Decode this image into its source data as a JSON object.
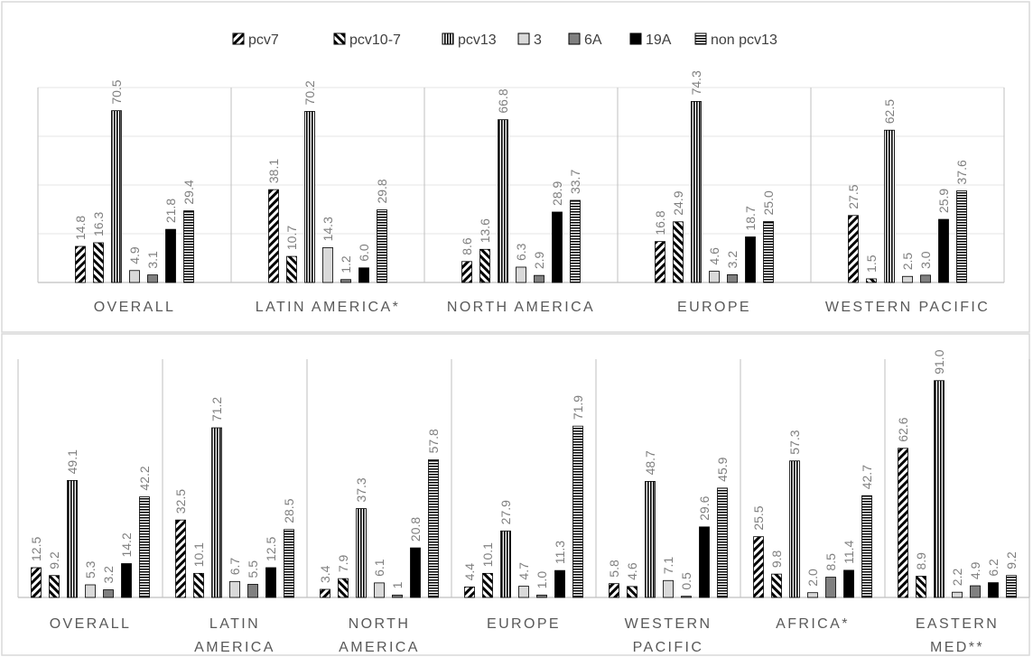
{
  "chart_data": [
    {
      "type": "bar",
      "legend": "top",
      "series_names": [
        "pcv7",
        "pcv10-7",
        "pcv13",
        "3",
        "6A",
        "19A",
        "non pcv13"
      ],
      "categories": [
        [
          "OVERALL"
        ],
        [
          "LATIN AMERICA*"
        ],
        [
          "NORTH AMERICA"
        ],
        [
          "EUROPE"
        ],
        [
          "WESTERN PACIFIC"
        ]
      ],
      "values": [
        [
          14.8,
          16.3,
          70.5,
          4.9,
          3.1,
          21.8,
          29.4
        ],
        [
          38.1,
          10.7,
          70.2,
          14.3,
          1.2,
          6.0,
          29.8
        ],
        [
          8.6,
          13.6,
          66.8,
          6.3,
          2.9,
          28.9,
          33.7
        ],
        [
          16.8,
          24.9,
          74.3,
          4.6,
          3.2,
          18.7,
          25.0
        ],
        [
          27.5,
          1.5,
          62.5,
          2.5,
          3.0,
          25.9,
          37.6
        ]
      ],
      "value_labels": [
        [
          "14.8",
          "16.3",
          "70.5",
          "4.9",
          "3.1",
          "21.8",
          "29.4"
        ],
        [
          "38.1",
          "10.7",
          "70.2",
          "14.3",
          "1.2",
          "6.0",
          "29.8"
        ],
        [
          "8.6",
          "13.6",
          "66.8",
          "6.3",
          "2.9",
          "28.9",
          "33.7"
        ],
        [
          "16.8",
          "24.9",
          "74.3",
          "4.6",
          "3.2",
          "18.7",
          "25.0"
        ],
        [
          "27.5",
          "1.5",
          "62.5",
          "2.5",
          "3.0",
          "25.9",
          "37.6"
        ]
      ],
      "ylim": [
        0,
        80
      ],
      "grid": true
    },
    {
      "type": "bar",
      "categories": [
        [
          "OVERALL"
        ],
        [
          "LATIN",
          "AMERICA"
        ],
        [
          "NORTH",
          "AMERICA"
        ],
        [
          "EUROPE"
        ],
        [
          "WESTERN",
          "PACIFIC"
        ],
        [
          "AFRICA*"
        ],
        [
          "EASTERN",
          "MED**"
        ]
      ],
      "values": [
        [
          12.5,
          9.2,
          49.1,
          5.3,
          3.2,
          14.2,
          42.2
        ],
        [
          32.5,
          10.1,
          71.2,
          6.7,
          5.5,
          12.5,
          28.5
        ],
        [
          3.4,
          7.9,
          37.3,
          6.1,
          1,
          20.8,
          57.8
        ],
        [
          4.4,
          10.1,
          27.9,
          4.7,
          1.0,
          11.3,
          71.9
        ],
        [
          5.8,
          4.6,
          48.7,
          7.1,
          0.5,
          29.6,
          45.9
        ],
        [
          25.5,
          9.8,
          57.3,
          2.0,
          8.5,
          11.4,
          42.7
        ],
        [
          62.6,
          8.9,
          91.0,
          2.2,
          4.9,
          6.2,
          9.2
        ]
      ],
      "value_labels": [
        [
          "12.5",
          "9.2",
          "49.1",
          "5.3",
          "3.2",
          "14.2",
          "42.2"
        ],
        [
          "32.5",
          "10.1",
          "71.2",
          "6.7",
          "5.5",
          "12.5",
          "28.5"
        ],
        [
          "3.4",
          "7.9",
          "37.3",
          "6.1",
          "1",
          "20.8",
          "57.8"
        ],
        [
          "4.4",
          "10.1",
          "27.9",
          "4.7",
          "1.0",
          "11.3",
          "71.9"
        ],
        [
          "5.8",
          "4.6",
          "48.7",
          "7.1",
          "0.5",
          "29.6",
          "45.9"
        ],
        [
          "25.5",
          "9.8",
          "57.3",
          "2.0",
          "8.5",
          "11.4",
          "42.7"
        ],
        [
          "62.6",
          "8.9",
          "91.0",
          "2.2",
          "4.9",
          "6.2",
          "9.2"
        ]
      ],
      "ylim": [
        0,
        100
      ]
    }
  ],
  "series_styles": [
    {
      "pattern": "diag",
      "color": "#000000"
    },
    {
      "pattern": "antidiag",
      "color": "#000000"
    },
    {
      "pattern": "vstripes",
      "color": "#000000"
    },
    {
      "pattern": "solid",
      "color": "#d9d9d9"
    },
    {
      "pattern": "solid",
      "color": "#808080"
    },
    {
      "pattern": "solid",
      "color": "#000000"
    },
    {
      "pattern": "hstripes",
      "color": "#000000"
    }
  ],
  "colors": {
    "axis": "#bfbfbf",
    "grid": "#e6e6e6",
    "frame": "#d9d9d9",
    "label": "#7f7f7f",
    "category": "#595959"
  }
}
